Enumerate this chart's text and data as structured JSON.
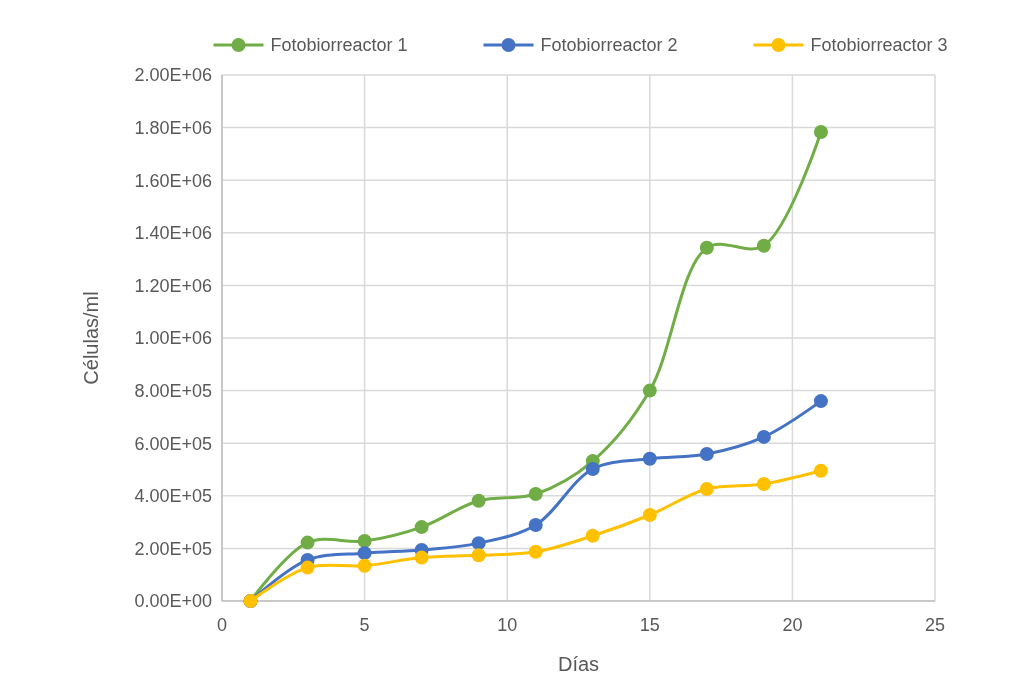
{
  "chart_data": {
    "type": "line",
    "xlabel": "Días",
    "ylabel": "Células/ml",
    "x": [
      1,
      3,
      5,
      7,
      9,
      11,
      13,
      15,
      17,
      19,
      21
    ],
    "series": [
      {
        "name": "Fotobiorreactor 1",
        "color": "#70ad47",
        "values": [
          0,
          222000,
          228000,
          281000,
          381000,
          407000,
          532000,
          800000,
          1343000,
          1351000,
          1783000
        ]
      },
      {
        "name": "Fotobiorreactor 2",
        "color": "#4472c4",
        "values": [
          0,
          156000,
          182000,
          194000,
          220000,
          289000,
          502000,
          541000,
          559000,
          624000,
          760000
        ]
      },
      {
        "name": "Fotobiorreactor 3",
        "color": "#ffc000",
        "values": [
          0,
          127000,
          134000,
          165000,
          174000,
          187000,
          248000,
          327000,
          426000,
          445000,
          495000
        ]
      }
    ],
    "xlim": [
      0,
      25
    ],
    "xticks": [
      0,
      5,
      10,
      15,
      20,
      25
    ],
    "ylim": [
      0,
      2000000
    ],
    "yticks": [
      {
        "value": 0,
        "label": "0.00E+00"
      },
      {
        "value": 200000,
        "label": "2.00E+05"
      },
      {
        "value": 400000,
        "label": "4.00E+05"
      },
      {
        "value": 600000,
        "label": "6.00E+05"
      },
      {
        "value": 800000,
        "label": "8.00E+05"
      },
      {
        "value": 1000000,
        "label": "1.00E+06"
      },
      {
        "value": 1200000,
        "label": "1.20E+06"
      },
      {
        "value": 1400000,
        "label": "1.40E+06"
      },
      {
        "value": 1600000,
        "label": "1.60E+06"
      },
      {
        "value": 1800000,
        "label": "1.80E+06"
      },
      {
        "value": 2000000,
        "label": "2.00E+06"
      }
    ],
    "grid": true,
    "legend": "top",
    "marker": "circle",
    "line_style": "solid"
  }
}
